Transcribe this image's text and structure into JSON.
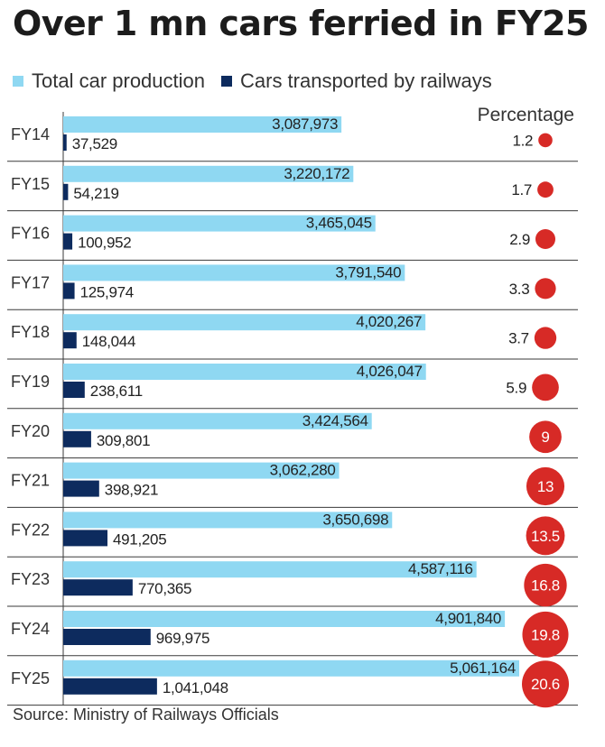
{
  "title": "Over 1 mn cars ferried in FY25",
  "source": "Source: Ministry of Railways Officials",
  "colors": {
    "production": "#8fd8f2",
    "railways": "#0d2b5e",
    "percentage": "#d72a26",
    "grid": "#3a3a3a"
  },
  "chart_data": {
    "type": "bar",
    "orientation": "horizontal",
    "categories": [
      "FY14",
      "FY15",
      "FY16",
      "FY17",
      "FY18",
      "FY19",
      "FY20",
      "FY21",
      "FY22",
      "FY23",
      "FY24",
      "FY25"
    ],
    "series": [
      {
        "name": "Total car production",
        "values": [
          3087973,
          3220172,
          3465045,
          3791540,
          4020267,
          4026047,
          3424564,
          3062280,
          3650698,
          4587116,
          4901840,
          5061164
        ],
        "labels": [
          "3,087,973",
          "3,220,172",
          "3,465,045",
          "3,791,540",
          "4,020,267",
          "4,026,047",
          "3,424,564",
          "3,062,280",
          "3,650,698",
          "4,587,116",
          "4,901,840",
          "5,061,164"
        ]
      },
      {
        "name": "Cars transported by railways",
        "values": [
          37529,
          54219,
          100952,
          125974,
          148044,
          238611,
          309801,
          398921,
          491205,
          770365,
          969975,
          1041048
        ],
        "labels": [
          "37,529",
          "54,219",
          "100,952",
          "125,974",
          "148,044",
          "238,611",
          "309,801",
          "398,921",
          "491,205",
          "770,365",
          "969,975",
          "1,041,048"
        ]
      }
    ],
    "percentage": {
      "title": "Percentage",
      "values": [
        1.2,
        1.7,
        2.9,
        3.3,
        3.7,
        5.9,
        9,
        13,
        13.5,
        16.8,
        19.8,
        20.6
      ],
      "labels": [
        "1.2",
        "1.7",
        "2.9",
        "3.3",
        "3.7",
        "5.9",
        "9",
        "13",
        "13.5",
        "16.8",
        "19.8",
        "20.6"
      ]
    },
    "xlim": [
      0,
      5061164
    ],
    "grid": "horizontal separators",
    "legend": "top"
  }
}
